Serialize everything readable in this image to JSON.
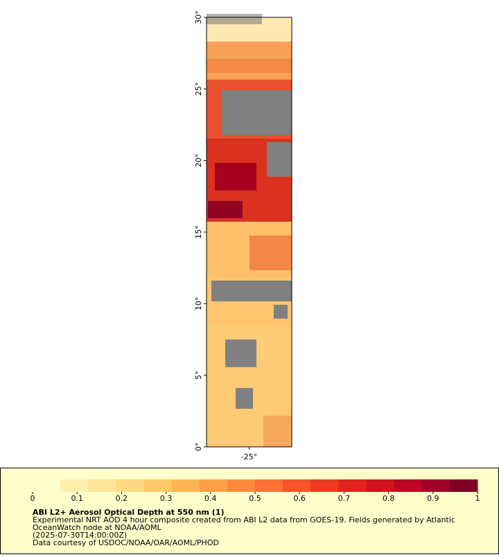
{
  "map": {
    "ylim": [
      0,
      30
    ],
    "yticks": [
      {
        "value": 0,
        "label": "0°"
      },
      {
        "value": 5,
        "label": "5°"
      },
      {
        "value": 10,
        "label": "10°"
      },
      {
        "value": 15,
        "label": "15°"
      },
      {
        "value": 20,
        "label": "20°"
      },
      {
        "value": 25,
        "label": "25°"
      },
      {
        "value": 30,
        "label": "30°"
      }
    ],
    "xlim": [
      -28,
      -22
    ],
    "xticks": [
      {
        "value": -25,
        "label": "-25°"
      }
    ]
  },
  "colorbar": {
    "lim": [
      0,
      1
    ],
    "ticks": [
      0,
      0.1,
      0.2,
      0.3,
      0.4,
      0.5,
      0.6,
      0.7,
      0.8,
      0.9,
      1
    ],
    "colors": [
      "#ffffcc",
      "#fff0b0",
      "#fee597",
      "#fed982",
      "#fec867",
      "#feb54f",
      "#fd9f44",
      "#fd8a3c",
      "#fc7033",
      "#f8552a",
      "#ef3a22",
      "#e1231f",
      "#d0121e",
      "#bb0626",
      "#a00026",
      "#800026"
    ]
  },
  "legend": {
    "title": "ABI L2+ Aerosol Optical Depth at 550 nm (1)",
    "lines": [
      "Experimental NRT AOD 4 hour composite created from ABI L2 data from GOES-19. Fields generated by Atlantic",
      "OceanWatch node at NOAA/AOML",
      "(2025-07-30T14:00:00Z)",
      "Data courtesy of USDOC/NOAA/OAR/AOML/PHOD"
    ]
  }
}
